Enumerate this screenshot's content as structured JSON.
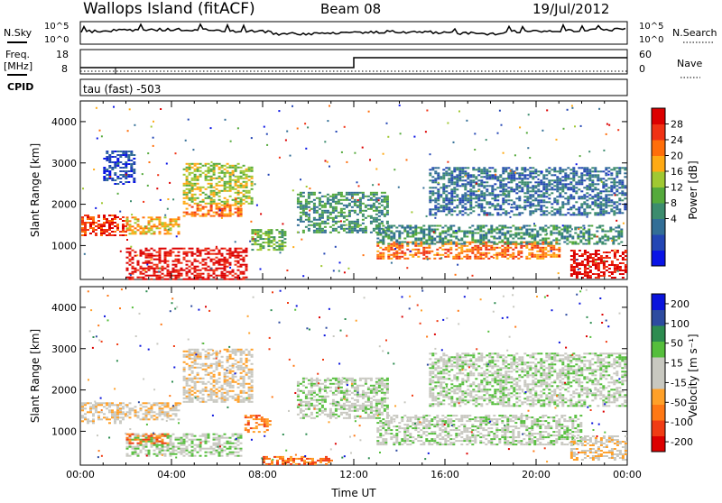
{
  "header": {
    "station": "Wallops Island (fitACF)",
    "beam": "Beam 08",
    "date": "19/Jul/2012"
  },
  "strip_panels": {
    "nsky_label": "N.Sky",
    "nsky_ticks": [
      "10^5",
      "10^0"
    ],
    "nsearch_label": "N.Search",
    "nsearch_ticks": [
      "10^5",
      "10^0"
    ],
    "freq_label_1": "Freq.",
    "freq_label_2": "[MHz]",
    "freq_ticks": [
      "18",
      "8"
    ],
    "nave_label": "Nave",
    "nave_ticks": [
      "60",
      "0"
    ],
    "cpid_label": "CPID",
    "cpid_text": "tau (fast) -503"
  },
  "colors": {
    "power": [
      "#0a14e6",
      "#2346b4",
      "#326e96",
      "#3c8c6e",
      "#55aa3c",
      "#a0c832",
      "#ffaa14",
      "#ff6e0a",
      "#f03214",
      "#dc0000"
    ],
    "velocity": [
      "#dc0000",
      "#f03c14",
      "#ff7814",
      "#ffa028",
      "#c8c8c0",
      "#c8c8c0",
      "#55be3c",
      "#2d8c50",
      "#2d4ba0",
      "#0a14dc"
    ]
  },
  "chart_data": [
    {
      "type": "heatmap",
      "name": "power",
      "xlabel": "",
      "ylabel": "Slant Range [km]",
      "xlim": [
        0,
        24
      ],
      "ylim": [
        180,
        4500
      ],
      "yticks": [
        "4000",
        "3000",
        "2000",
        "1000"
      ],
      "colorbar_label": "Power [dB]",
      "colorbar_ticks": [
        "28",
        "24",
        "20",
        "16",
        "12",
        "8",
        "4"
      ],
      "regions": [
        {
          "t0": 0.0,
          "t1": 2.0,
          "r0": 1250,
          "r1": 1750,
          "level": 8
        },
        {
          "t0": 2.0,
          "t1": 4.3,
          "r0": 1300,
          "r1": 1700,
          "level": 6
        },
        {
          "t0": 4.5,
          "t1": 7.0,
          "r0": 1700,
          "r1": 2000,
          "level": 7
        },
        {
          "t0": 4.5,
          "t1": 7.5,
          "r0": 2000,
          "r1": 3000,
          "level": 5
        },
        {
          "t0": 2.0,
          "t1": 7.3,
          "r0": 200,
          "r1": 950,
          "level": 9
        },
        {
          "t0": 7.5,
          "t1": 9.0,
          "r0": 900,
          "r1": 1400,
          "level": 4
        },
        {
          "t0": 9.5,
          "t1": 13.5,
          "r0": 1300,
          "r1": 2300,
          "level": 3
        },
        {
          "t0": 13.0,
          "t1": 21.0,
          "r0": 700,
          "r1": 1100,
          "level": 7
        },
        {
          "t0": 13.0,
          "t1": 23.8,
          "r0": 1050,
          "r1": 1500,
          "level": 3
        },
        {
          "t0": 15.3,
          "t1": 24.0,
          "r0": 1750,
          "r1": 2900,
          "level": 2
        },
        {
          "t0": 21.5,
          "t1": 24.0,
          "r0": 200,
          "r1": 900,
          "level": 9
        },
        {
          "t0": 1.0,
          "t1": 2.4,
          "r0": 2500,
          "r1": 3300,
          "level": 1
        }
      ]
    },
    {
      "type": "heatmap",
      "name": "velocity",
      "xlabel": "Time UT",
      "ylabel": "Slant Range [km]",
      "xlim": [
        0,
        24
      ],
      "ylim": [
        180,
        4500
      ],
      "xticks": [
        "00:00",
        "04:00",
        "08:00",
        "12:00",
        "16:00",
        "20:00",
        "00:00"
      ],
      "yticks": [
        "4000",
        "3000",
        "2000",
        "1000"
      ],
      "colorbar_label": "Velocity [m s⁻¹]",
      "colorbar_ticks": [
        "200",
        "100",
        "50",
        "15",
        "-15",
        "-50",
        "-100",
        "-200"
      ],
      "regions": [
        {
          "t0": 0.0,
          "t1": 2.0,
          "r0": 1200,
          "r1": 1700,
          "level": 4
        },
        {
          "t0": 2.0,
          "t1": 4.3,
          "r0": 1300,
          "r1": 1700,
          "level": 4
        },
        {
          "t0": 4.5,
          "t1": 7.5,
          "r0": 1700,
          "r1": 3000,
          "level": 4
        },
        {
          "t0": 2.0,
          "t1": 7.0,
          "r0": 400,
          "r1": 950,
          "level": 5
        },
        {
          "t0": 2.0,
          "t1": 4.0,
          "r0": 700,
          "r1": 950,
          "level": 2
        },
        {
          "t0": 7.2,
          "t1": 8.3,
          "r0": 1000,
          "r1": 1400,
          "level": 2
        },
        {
          "t0": 8.0,
          "t1": 11.0,
          "r0": 180,
          "r1": 400,
          "level": 2
        },
        {
          "t0": 9.5,
          "t1": 13.5,
          "r0": 1300,
          "r1": 2300,
          "level": 5
        },
        {
          "t0": 13.0,
          "t1": 22.0,
          "r0": 700,
          "r1": 1400,
          "level": 5
        },
        {
          "t0": 15.3,
          "t1": 24.0,
          "r0": 1600,
          "r1": 2900,
          "level": 5
        },
        {
          "t0": 21.5,
          "t1": 24.0,
          "r0": 300,
          "r1": 900,
          "level": 4
        }
      ]
    }
  ]
}
